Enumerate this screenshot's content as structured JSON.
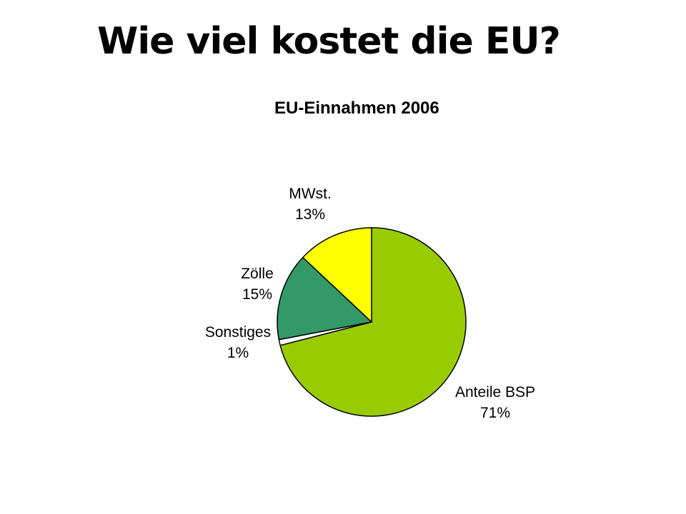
{
  "slide": {
    "title": "Wie viel kostet die EU?"
  },
  "chart_data": {
    "type": "pie",
    "title": "EU-Einnahmen 2006",
    "slices": [
      {
        "label": "Anteile BSP",
        "value": 71,
        "value_label": "71%",
        "color": "#99cc00"
      },
      {
        "label": "Sonstiges",
        "value": 1,
        "value_label": "1%",
        "color": "#ffffff"
      },
      {
        "label": "Zölle",
        "value": 15,
        "value_label": "15%",
        "color": "#339966"
      },
      {
        "label": "MWst.",
        "value": 13,
        "value_label": "13%",
        "color": "#ffff00"
      }
    ],
    "start": "12 o'clock",
    "direction": "clockwise",
    "legend": "none"
  }
}
